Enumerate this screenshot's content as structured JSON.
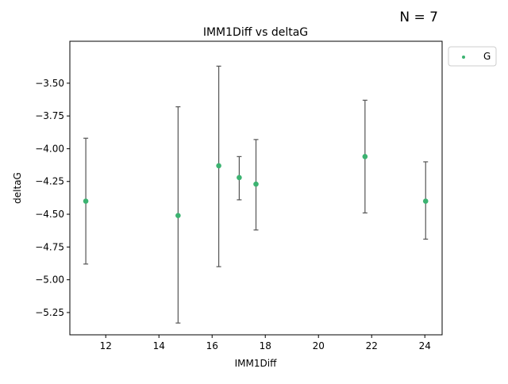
{
  "annotation": "N = 7",
  "chart_data": {
    "type": "scatter",
    "title": "IMM1Diff vs deltaG",
    "xlabel": "IMM1Diff",
    "ylabel": "deltaG",
    "xlim": [
      10.65,
      24.65
    ],
    "ylim": [
      -5.42,
      -3.18
    ],
    "xticks": [
      12,
      14,
      16,
      18,
      20,
      22,
      24
    ],
    "xtick_labels": [
      "12",
      "14",
      "16",
      "18",
      "20",
      "22",
      "24"
    ],
    "yticks": [
      -5.25,
      -5.0,
      -4.75,
      -4.5,
      -4.25,
      -4.0,
      -3.75,
      -3.5
    ],
    "ytick_labels": [
      "−5.25",
      "−5.00",
      "−4.75",
      "−4.50",
      "−4.25",
      "−4.00",
      "−3.75",
      "−3.50"
    ],
    "grid": false,
    "legend_position": "outside-top-right",
    "series": [
      {
        "name": "G",
        "color": "#3cb371",
        "errorbar_color": "#555555",
        "points": [
          {
            "x": 11.25,
            "y": -4.4,
            "err_low": -4.88,
            "err_high": -3.92
          },
          {
            "x": 14.72,
            "y": -4.51,
            "err_low": -5.33,
            "err_high": -3.68
          },
          {
            "x": 16.25,
            "y": -4.13,
            "err_low": -4.9,
            "err_high": -3.37
          },
          {
            "x": 17.02,
            "y": -4.22,
            "err_low": -4.39,
            "err_high": -4.06
          },
          {
            "x": 17.65,
            "y": -4.27,
            "err_low": -4.62,
            "err_high": -3.93
          },
          {
            "x": 21.75,
            "y": -4.06,
            "err_low": -4.49,
            "err_high": -3.63
          },
          {
            "x": 24.03,
            "y": -4.4,
            "err_low": -4.69,
            "err_high": -4.1
          }
        ]
      }
    ]
  }
}
